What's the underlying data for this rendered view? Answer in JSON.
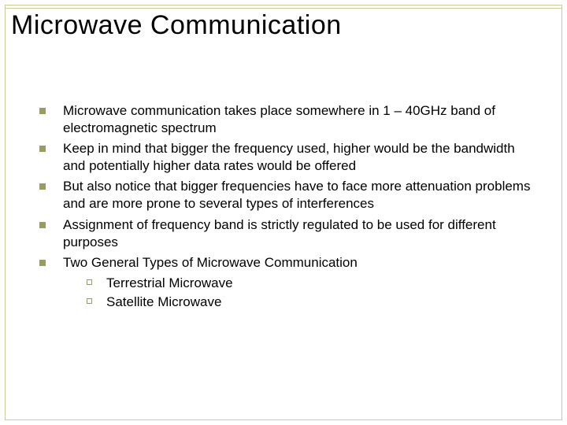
{
  "title": "Microwave Communication",
  "bullets": [
    {
      "text": "Microwave communication takes place somewhere in 1 – 40GHz band of electromagnetic spectrum"
    },
    {
      "text": "Keep in mind that bigger the frequency used, higher would be the bandwidth and potentially higher data rates would be offered"
    },
    {
      "text": "But also notice that bigger frequencies have to face more attenuation problems and are more prone to several types of interferences"
    },
    {
      "text": "Assignment of frequency band is strictly regulated to be used for different purposes"
    },
    {
      "text": "Two General Types of Microwave Communication"
    }
  ],
  "subbullets": [
    {
      "text": "Terrestrial Microwave"
    },
    {
      "text": "Satellite Microwave"
    }
  ],
  "colors": {
    "accent": "#9a9a66",
    "border": "#cccc99",
    "text": "#000000",
    "background": "#ffffff"
  },
  "typography": {
    "title_fontsize": 34,
    "body_fontsize": 17,
    "font_family": "Arial"
  }
}
